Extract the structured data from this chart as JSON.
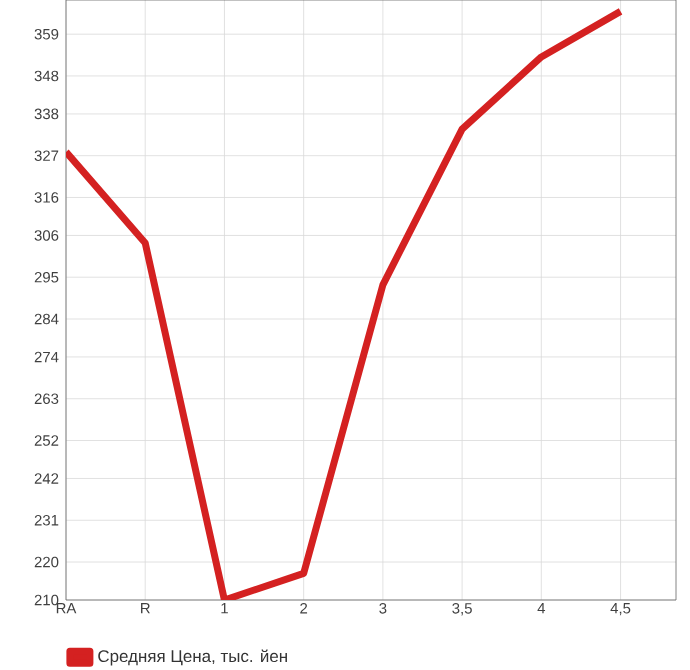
{
  "chart_data": {
    "type": "line",
    "categories": [
      "RA",
      "R",
      "1",
      "2",
      "3",
      "3,5",
      "4",
      "4,5"
    ],
    "series": [
      {
        "name": "Средняя Цена, тыс. йен",
        "color": "#d42121",
        "values": [
          328,
          304,
          210,
          217,
          293,
          334,
          353,
          365
        ]
      }
    ],
    "ylim": [
      210,
      368
    ],
    "yticks": [
      210,
      220,
      231,
      242,
      252,
      263,
      274,
      284,
      295,
      306,
      316,
      327,
      338,
      348,
      359
    ],
    "grid": true,
    "legend": "bottom left",
    "marker": "none",
    "line_style": "solid"
  }
}
